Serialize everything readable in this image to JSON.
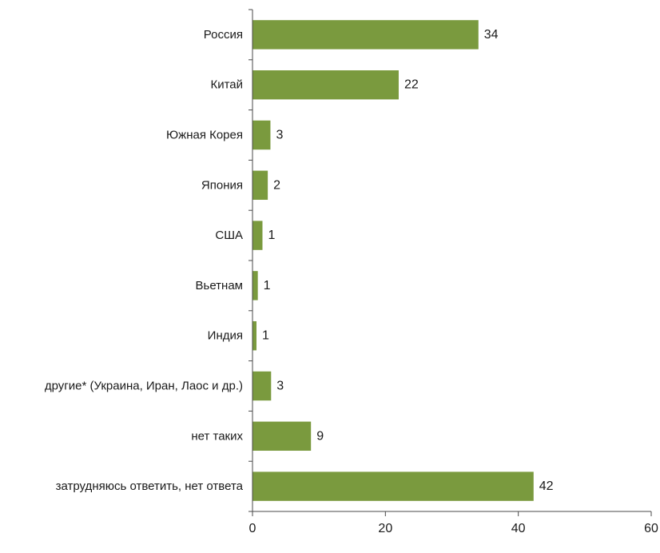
{
  "chart_data": {
    "type": "bar",
    "orientation": "horizontal",
    "categories": [
      "Россия",
      "Китай",
      "Южная Корея",
      "Япония",
      "США",
      "Вьетнам",
      "Индия",
      "другие* (Украина, Иран, Лаос и др.)",
      "нет таких",
      "затрудняюсь ответить, нет ответа"
    ],
    "values": [
      34,
      22,
      3,
      2,
      1,
      1,
      1,
      3,
      9,
      42
    ],
    "bar_lengths": [
      34,
      22,
      2.7,
      2.3,
      1.5,
      0.8,
      0.6,
      2.8,
      8.8,
      42.3
    ],
    "data_labels": [
      "34",
      "22",
      "3",
      "2",
      "1",
      "1",
      "1",
      "3",
      "9",
      "42"
    ],
    "xlim": [
      0,
      60
    ],
    "x_ticks": [
      "0",
      "20",
      "40",
      "60"
    ],
    "title": "",
    "xlabel": "",
    "ylabel": "",
    "grid": false,
    "legend": "none",
    "bar_color": "#7a9a3e"
  }
}
